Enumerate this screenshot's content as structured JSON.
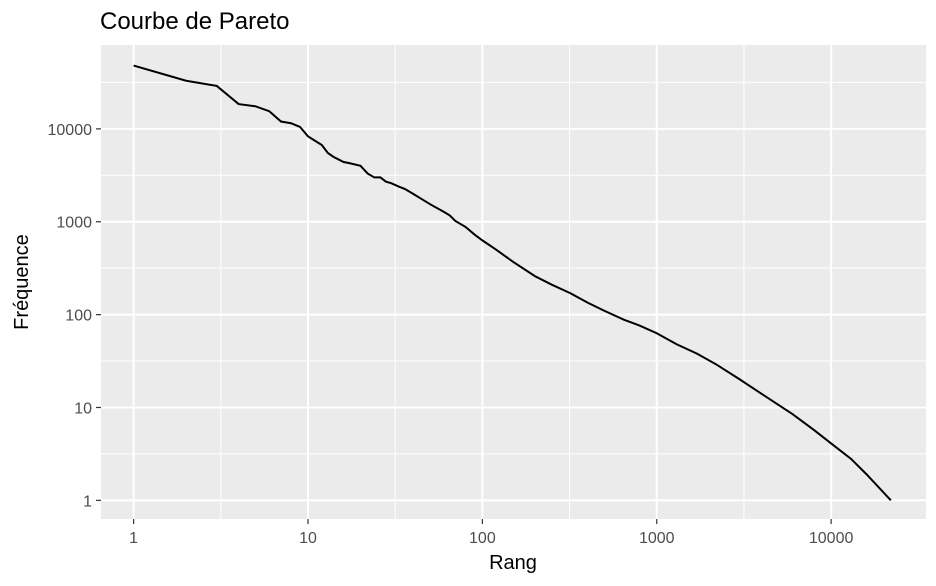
{
  "chart_data": {
    "type": "line",
    "title": "Courbe de Pareto",
    "xlabel": "Rang",
    "ylabel": "Fréquence",
    "x_scale": "log",
    "y_scale": "log",
    "xlim": [
      0.65,
      35000
    ],
    "ylim": [
      0.63,
      80000
    ],
    "x_ticks": [
      {
        "value": 1,
        "label": "1"
      },
      {
        "value": 10,
        "label": "10"
      },
      {
        "value": 100,
        "label": "100"
      },
      {
        "value": 1000,
        "label": "1000"
      },
      {
        "value": 10000,
        "label": "10000"
      }
    ],
    "y_ticks": [
      {
        "value": 1,
        "label": "1"
      },
      {
        "value": 10,
        "label": "10"
      },
      {
        "value": 100,
        "label": "100"
      },
      {
        "value": 1000,
        "label": "1000"
      },
      {
        "value": 10000,
        "label": "10000"
      }
    ],
    "grid": true,
    "colors": {
      "panel": "#ebebeb",
      "grid": "#ffffff",
      "line": "#000000",
      "tick_text": "#4d4d4d"
    },
    "series": [
      {
        "x": [
          1,
          2,
          3,
          4,
          5,
          6,
          7,
          8,
          9,
          10,
          12,
          13,
          14,
          16,
          17,
          20,
          22,
          24,
          26,
          28,
          30,
          33,
          36,
          40,
          45,
          50,
          55,
          60,
          65,
          70,
          80,
          90,
          100,
          120,
          150,
          200,
          250,
          320,
          400,
          500,
          650,
          800,
          1000,
          1300,
          1700,
          2200,
          3000,
          4000,
          6000,
          8000,
          10000,
          13000,
          16000,
          22000
        ],
        "y": [
          48000,
          33000,
          29000,
          18500,
          17500,
          15500,
          12000,
          11500,
          10500,
          8300,
          6700,
          5500,
          5000,
          4400,
          4300,
          4000,
          3300,
          3000,
          3000,
          2700,
          2600,
          2400,
          2250,
          2000,
          1750,
          1550,
          1400,
          1280,
          1170,
          1020,
          880,
          730,
          630,
          500,
          370,
          260,
          210,
          170,
          135,
          110,
          88,
          76,
          63,
          48,
          38,
          29,
          20,
          14,
          8.5,
          5.7,
          4.1,
          2.8,
          1.9,
          1.0
        ]
      }
    ]
  }
}
